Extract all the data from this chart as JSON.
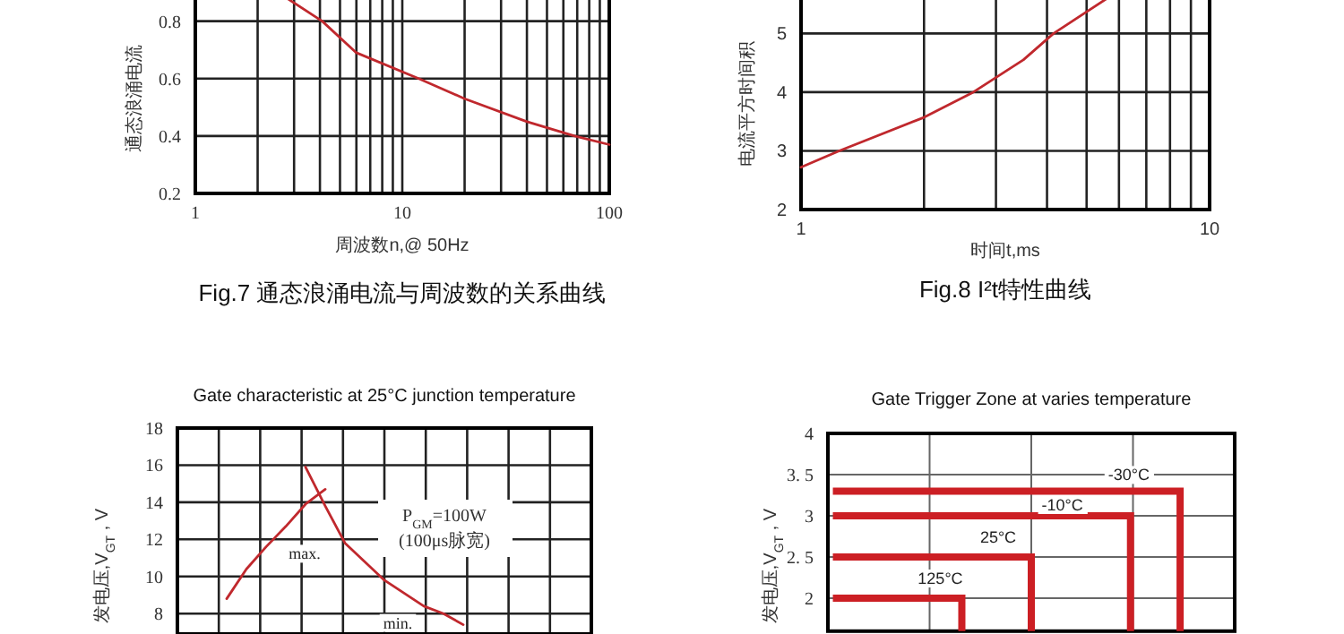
{
  "chart_data": [
    {
      "type": "line",
      "title": "Fig.7 通态浪涌电流与周波数的关系曲线",
      "xlabel": "周波数n,@ 50Hz",
      "ylabel": "通态浪涌电流",
      "log": "x",
      "grid": true,
      "x": [
        2.77,
        4.1,
        6,
        12,
        20,
        40,
        68,
        100
      ],
      "series": [
        {
          "color": "#c0282d",
          "values": [
            0.88,
            0.8,
            0.69,
            0.6,
            0.53,
            0.45,
            0.4,
            0.37
          ]
        }
      ],
      "xlim": [
        1,
        100
      ],
      "ylim": [
        0.2,
        0.88
      ],
      "xticks": [
        1,
        {
          "value": 2,
          "label": null
        },
        {
          "value": 3,
          "label": null
        },
        {
          "value": 4,
          "label": null
        },
        {
          "value": 5,
          "label": null
        },
        {
          "value": 6,
          "label": null
        },
        {
          "value": 7,
          "label": null
        },
        {
          "value": 8,
          "label": null
        },
        {
          "value": 9,
          "label": null
        },
        10,
        {
          "value": 20,
          "label": null
        },
        {
          "value": 30,
          "label": null
        },
        {
          "value": 40,
          "label": null
        },
        {
          "value": 50,
          "label": null
        },
        {
          "value": 60,
          "label": null
        },
        {
          "value": 70,
          "label": null
        },
        {
          "value": 80,
          "label": null
        },
        {
          "value": 90,
          "label": null
        },
        100
      ],
      "yticks": [
        0.2,
        0.4,
        0.6,
        0.8
      ]
    },
    {
      "type": "line",
      "title": "Fig.8 I²t特性曲线",
      "xlabel": "时间t,ms",
      "ylabel": "电流平方时间积",
      "log": "x",
      "grid": true,
      "x": [
        1,
        1.24,
        2,
        2.64,
        3.5,
        4.15,
        5.62
      ],
      "series": [
        {
          "color": "#c0282d",
          "values": [
            2.72,
            3,
            3.57,
            4,
            4.55,
            5,
            5.6
          ]
        }
      ],
      "xlim": [
        1,
        10
      ],
      "ylim": [
        2,
        5.6
      ],
      "xticks": [
        1,
        {
          "value": 2,
          "label": null
        },
        {
          "value": 3,
          "label": null
        },
        {
          "value": 4,
          "label": null
        },
        {
          "value": 5,
          "label": null
        },
        {
          "value": 6,
          "label": null
        },
        {
          "value": 7,
          "label": null
        },
        {
          "value": 8,
          "label": null
        },
        {
          "value": 9,
          "label": null
        },
        10
      ],
      "yticks": [
        2,
        3,
        4,
        5
      ]
    },
    {
      "type": "line",
      "title": "Gate characteristic at 25°C junction temperature",
      "ylabel": "发电压,V$_{GT}$ , V",
      "grid": true,
      "tick_labels": "y",
      "categories": [
        null,
        null,
        null,
        null,
        null,
        null,
        null,
        null,
        null,
        null,
        null,
        null,
        null,
        null,
        null,
        null,
        null,
        null,
        null,
        null,
        null
      ],
      "series": [
        {
          "name": "max.",
          "color": "#c0282d",
          "values": [
            null,
            null,
            8.8,
            10.4,
            11.6,
            12.7,
            13.9,
            14.7,
            null,
            null,
            null,
            null,
            null,
            null,
            null,
            null,
            null,
            null,
            null,
            null,
            null
          ]
        },
        {
          "name": "min.",
          "color": "#c0282d",
          "values": [
            null,
            null,
            null,
            null,
            null,
            null,
            15.9,
            13.8,
            11.8,
            10.8,
            9.8,
            9.1,
            8.4,
            8.0,
            7.4,
            null,
            null,
            null,
            null,
            null,
            null
          ]
        }
      ],
      "ylim": [
        6.9,
        18
      ],
      "yticks": [
        8,
        10,
        12,
        14,
        16,
        18
      ],
      "annotations": [
        "P$_{GM}$=100W",
        "(100μs脉宽)"
      ]
    },
    {
      "type": "step",
      "title": "Gate Trigger Zone at varies temperature",
      "ylabel": "发电压,V$_{GT}$ , V",
      "grid": true,
      "tick_labels": "y",
      "categories": [
        null,
        null,
        null,
        null,
        null,
        null,
        null,
        null,
        null,
        null,
        null,
        null,
        null,
        null,
        null,
        null,
        null,
        null,
        null,
        null,
        null,
        null,
        null,
        null,
        null,
        null,
        null,
        null,
        null,
        null,
        null,
        null,
        null,
        null,
        null,
        null,
        null,
        null,
        null,
        null,
        null
      ],
      "series": [
        {
          "name": "-30°C",
          "color": "#cc1f24",
          "values": [
            3.3,
            3.3,
            3.3,
            3.3,
            3.3,
            3.3,
            3.3,
            3.3,
            3.3,
            3.3,
            3.3,
            3.3,
            3.3,
            3.3,
            3.3,
            3.3,
            3.3,
            3.3,
            3.3,
            3.3,
            3.3,
            3.3,
            3.3,
            3.3,
            3.3,
            3.3,
            3.3,
            3.3,
            3.3,
            3.3,
            3.3,
            3.3,
            3.3,
            3.3,
            3.3,
            1.6,
            null,
            null,
            null,
            null,
            null
          ]
        },
        {
          "name": "-10°C",
          "color": "#cc1f24",
          "values": [
            3.0,
            3.0,
            3.0,
            3.0,
            3.0,
            3.0,
            3.0,
            3.0,
            3.0,
            3.0,
            3.0,
            3.0,
            3.0,
            3.0,
            3.0,
            3.0,
            3.0,
            3.0,
            3.0,
            3.0,
            3.0,
            3.0,
            3.0,
            3.0,
            3.0,
            3.0,
            3.0,
            3.0,
            3.0,
            3.0,
            1.6,
            null,
            null,
            null,
            null,
            null,
            null,
            null,
            null,
            null,
            null
          ]
        },
        {
          "name": "25°C",
          "color": "#cc1f24",
          "values": [
            2.5,
            2.5,
            2.5,
            2.5,
            2.5,
            2.5,
            2.5,
            2.5,
            2.5,
            2.5,
            2.5,
            2.5,
            2.5,
            2.5,
            2.5,
            2.5,
            2.5,
            2.5,
            2.5,
            2.5,
            1.6,
            null,
            null,
            null,
            null,
            null,
            null,
            null,
            null,
            null,
            null,
            null,
            null,
            null,
            null,
            null,
            null,
            null,
            null,
            null,
            null
          ]
        },
        {
          "name": "125°C",
          "color": "#cc1f24",
          "values": [
            2.0,
            2.0,
            2.0,
            2.0,
            2.0,
            2.0,
            2.0,
            2.0,
            2.0,
            2.0,
            2.0,
            2.0,
            2.0,
            1.6,
            null,
            null,
            null,
            null,
            null,
            null,
            null,
            null,
            null,
            null,
            null,
            null,
            null,
            null,
            null,
            null,
            null,
            null,
            null,
            null,
            null,
            null,
            null,
            null,
            null,
            null,
            null
          ]
        }
      ],
      "ylim": [
        1.6,
        4
      ],
      "yticks": [
        {
          "value": 2,
          "label": "2"
        },
        {
          "value": 2.5,
          "label": "2. 5"
        },
        {
          "value": 3,
          "label": "3"
        },
        {
          "value": 3.5,
          "label": "3. 5"
        },
        {
          "value": 4,
          "label": "4"
        }
      ]
    }
  ]
}
